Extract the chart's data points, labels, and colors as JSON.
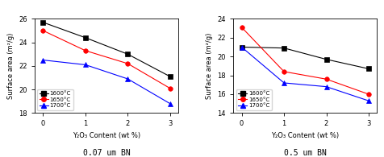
{
  "left_plot": {
    "title": "0.07 um BN",
    "x": [
      0,
      1,
      2,
      3
    ],
    "series": [
      {
        "label": "1600°C",
        "color": "black",
        "marker": "s",
        "y": [
          25.7,
          24.4,
          23.0,
          21.1
        ]
      },
      {
        "label": "1650°C",
        "color": "red",
        "marker": "o",
        "y": [
          25.0,
          23.3,
          22.2,
          20.1
        ]
      },
      {
        "label": "1700°C",
        "color": "blue",
        "marker": "^",
        "y": [
          22.5,
          22.1,
          20.9,
          18.8
        ]
      }
    ],
    "ylim": [
      18,
      26
    ],
    "yticks": [
      18,
      20,
      22,
      24,
      26
    ],
    "ylabel": "Surface area (m²/g)"
  },
  "right_plot": {
    "title": "0.5 um BN",
    "x": [
      0,
      1,
      2,
      3
    ],
    "series": [
      {
        "label": "1600°C",
        "color": "black",
        "marker": "s",
        "y": [
          21.0,
          20.9,
          19.7,
          18.7
        ]
      },
      {
        "label": "1650°C",
        "color": "red",
        "marker": "o",
        "y": [
          23.1,
          18.4,
          17.6,
          16.0
        ]
      },
      {
        "label": "1700°C",
        "color": "blue",
        "marker": "^",
        "y": [
          21.0,
          17.2,
          16.8,
          15.3
        ]
      }
    ],
    "ylim": [
      14,
      24
    ],
    "yticks": [
      14,
      16,
      18,
      20,
      22,
      24
    ],
    "ylabel": "Surface area (m²/g)"
  },
  "xlabel": "Y₂O₃ Content (wt %)",
  "xticks": [
    0,
    1,
    2,
    3
  ],
  "legend_labels": [
    "1600°C",
    "1650°C",
    "1700°C"
  ],
  "legend_colors": [
    "black",
    "red",
    "blue"
  ],
  "legend_markers": [
    "s",
    "o",
    "^"
  ]
}
